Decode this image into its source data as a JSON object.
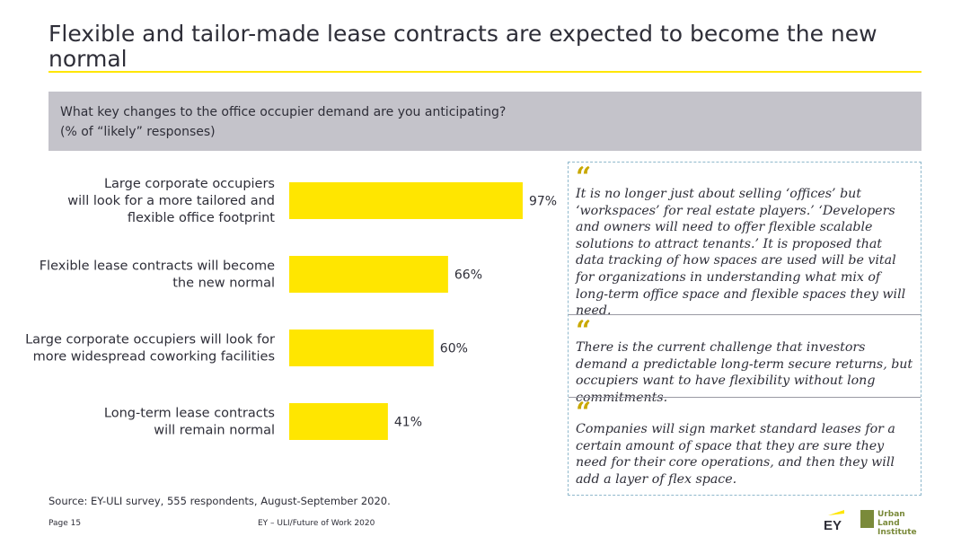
{
  "slide": {
    "title": "Flexible and tailor-made lease contracts are expected to become the new normal",
    "question_line1": "What key changes to the office occupier demand are you anticipating?",
    "question_line2": "(% of “likely” responses)",
    "accent_color": "#ffe600",
    "question_bg_color": "#c4c3ca"
  },
  "chart_data": {
    "type": "bar",
    "orientation": "horizontal",
    "categories": [
      [
        "Large corporate occupiers",
        "will look for a more tailored and",
        "flexible office footprint"
      ],
      [
        "Flexible lease contracts will become",
        "the new normal"
      ],
      [
        "Large corporate occupiers will look for",
        "more widespread coworking facilities"
      ],
      [
        "Long-term lease contracts",
        "will remain normal"
      ]
    ],
    "values": [
      97,
      66,
      60,
      41
    ],
    "value_labels": [
      "97%",
      "66%",
      "60%",
      "41%"
    ],
    "xlim": [
      0,
      100
    ],
    "bar_color": "#ffe600",
    "grid": false,
    "legend": "none"
  },
  "quotes": [
    {
      "mark": "“",
      "text": "It is no longer just about selling ‘offices’ but ‘workspaces’ for real estate players.’ ‘Developers and owners will need to offer flexible scalable solutions to attract tenants.’ It is proposed that data tracking of how spaces are used will be vital for organizations in understanding what mix of long-term office space and flexible spaces they will need."
    },
    {
      "mark": "“",
      "text": "There is the current challenge that investors demand a predictable long-term secure returns, but occupiers want to have flexibility without long commitments."
    },
    {
      "mark": "“",
      "text": "Companies will sign market standard leases for a certain amount of space that they are sure they need for their core operations, and then they will add a layer of flex space."
    }
  ],
  "footer": {
    "source": "Source: EY-ULI survey, 555 respondents, August-September 2020.",
    "page": "Page 15",
    "center": "EY – ULI/Future of Work 2020",
    "ey_logo_text": "EY",
    "uli_logo_line1": "Urban Land",
    "uli_logo_line2": "Institute"
  }
}
